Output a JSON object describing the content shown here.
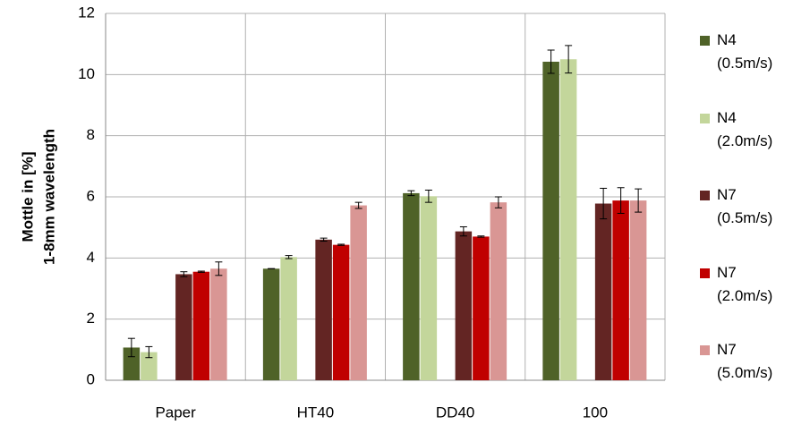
{
  "chart_data": {
    "type": "bar",
    "y_label": [
      "Mottle in [%]",
      "1-8mm wavelength"
    ],
    "categories": [
      "Paper",
      "HT40",
      "DD40",
      "100"
    ],
    "series": [
      {
        "name": "N4 (0.5m/s)",
        "color": "#4f6228",
        "values": [
          1.07,
          3.65,
          6.12,
          10.42
        ],
        "errors": [
          0.3,
          0,
          0.08,
          0.38
        ]
      },
      {
        "name": "N4 (2.0m/s)",
        "color": "#c3d69b",
        "values": [
          0.92,
          4.03,
          6.02,
          10.5
        ],
        "errors": [
          0.18,
          0.05,
          0.2,
          0.45
        ]
      },
      {
        "name": "N7 (0.5m/s)",
        "color": "#632523",
        "values": [
          3.47,
          4.6,
          4.87,
          5.78
        ],
        "errors": [
          0.08,
          0.05,
          0.15,
          0.5
        ]
      },
      {
        "name": "N7 (2.0m/s)",
        "color": "#c00000",
        "values": [
          3.55,
          4.43,
          4.7,
          5.88
        ],
        "errors": [
          0.02,
          0.02,
          0.02,
          0.42
        ]
      },
      {
        "name": "N7 (5.0m/s)",
        "color": "#d99694",
        "values": [
          3.65,
          5.72,
          5.82,
          5.88
        ],
        "errors": [
          0.22,
          0.1,
          0.18,
          0.38
        ]
      }
    ],
    "ylim": [
      0,
      12
    ],
    "yticks": [
      0,
      2,
      4,
      6,
      8,
      10,
      12
    ],
    "grid": true,
    "legend": "right"
  }
}
